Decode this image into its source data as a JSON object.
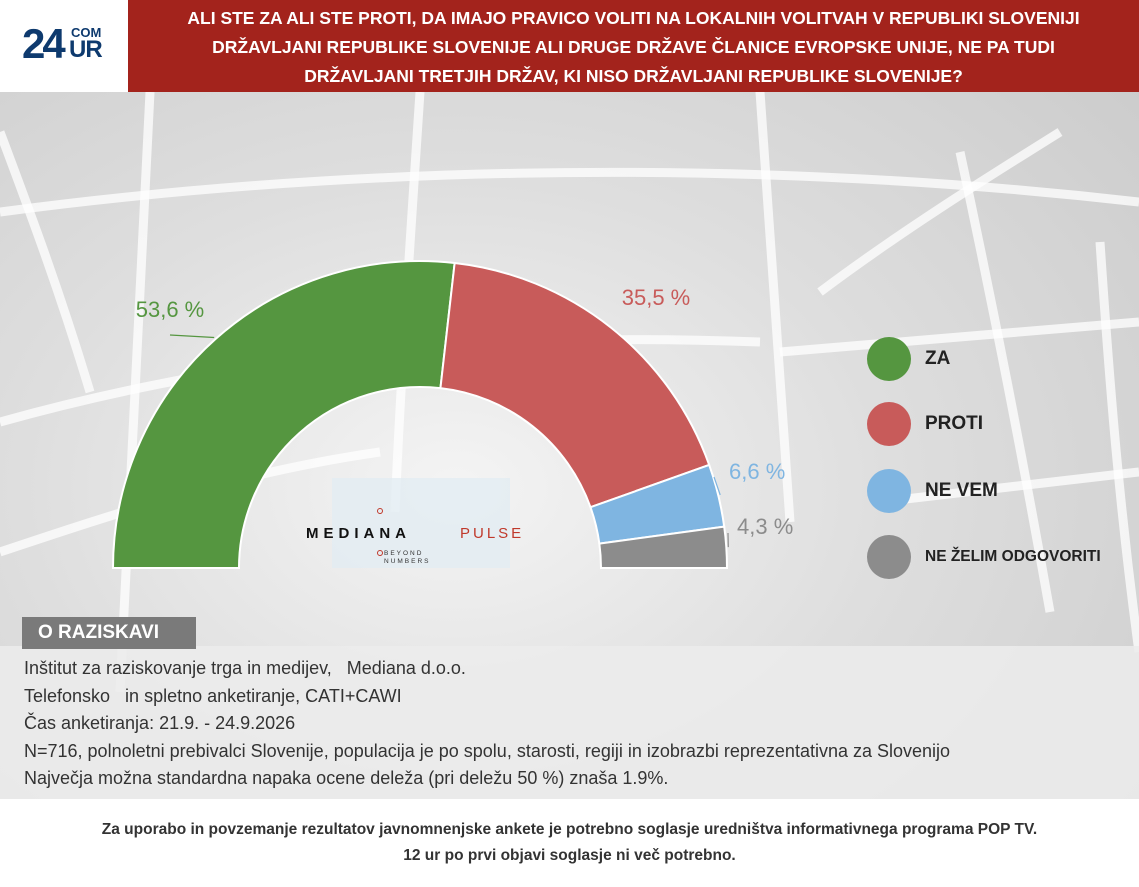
{
  "header": {
    "logo_main": "24",
    "logo_com": "COM",
    "logo_ur": "UR",
    "title_lines": [
      "ALI STE ZA ALI STE PROTI, DA IMAJO PRAVICO VOLITI NA LOKALNIH VOLITVAH V REPUBLIKI SLOVENIJI",
      "DRŽAVLJANI REPUBLIKE SLOVENIJE ALI DRUGE DRŽAVE ČLANICE EVROPSKE UNIJE, NE PA TUDI",
      "DRŽAVLJANI TRETJIH DRŽAV, KI NISO DRŽAVLJANI REPUBLIKE SLOVENIJE?"
    ]
  },
  "chart_data": {
    "type": "pie",
    "subtype": "semicircle-donut",
    "title": "ALI STE ZA ALI STE PROTI, DA IMAJO PRAVICO VOLITI NA LOKALNIH VOLITVAH V REPUBLIKI SLOVENIJI DRŽAVLJANI REPUBLIKE SLOVENIJE ALI DRUGE DRŽAVE ČLANICE EVROPSKE UNIJE, NE PA TUDI DRŽAVLJANI TRETJIH DRŽAV, KI NISO DRŽAVLJANI REPUBLIKE SLOVENIJE?",
    "categories": [
      "ZA",
      "PROTI",
      "NE VEM",
      "NE ŽELIM ODGOVORITI"
    ],
    "values": [
      53.6,
      35.5,
      6.6,
      4.3
    ],
    "labels": [
      "53,6 %",
      "35,5 %",
      "6,6 %",
      "4,3 %"
    ],
    "colors": [
      "#559640",
      "#c85b5a",
      "#7fb5e1",
      "#8c8c8c"
    ],
    "legend_position": "right"
  },
  "watermark": {
    "word": "MEDIANA",
    "accent": "PULSE",
    "tag_line1": "BEYOND",
    "tag_line2": "NUMBERS"
  },
  "about": {
    "heading": "O RAZISKAVI",
    "lines": [
      "Inštitut za raziskovanje trga in medijev,   Mediana d.o.o.",
      "Telefonsko   in spletno anketiranje, CATI+CAWI",
      "Čas anketiranja: 21.9. - 24.9.2026",
      "N=716, polnoletni prebivalci Slovenije, populacija je po spolu, starosti, regiji in izobrazbi reprezentativna za Slovenijo",
      "Največja možna standardna napaka ocene deleža (pri deležu 50 %) znaša 1.9%."
    ]
  },
  "footer": {
    "line1": "Za uporabo in povzemanje rezultatov javnomnenjske ankete je potrebno soglasje uredništva informativnega programa POP TV.",
    "line2": "12 ur po prvi objavi soglasje ni več potrebno."
  }
}
